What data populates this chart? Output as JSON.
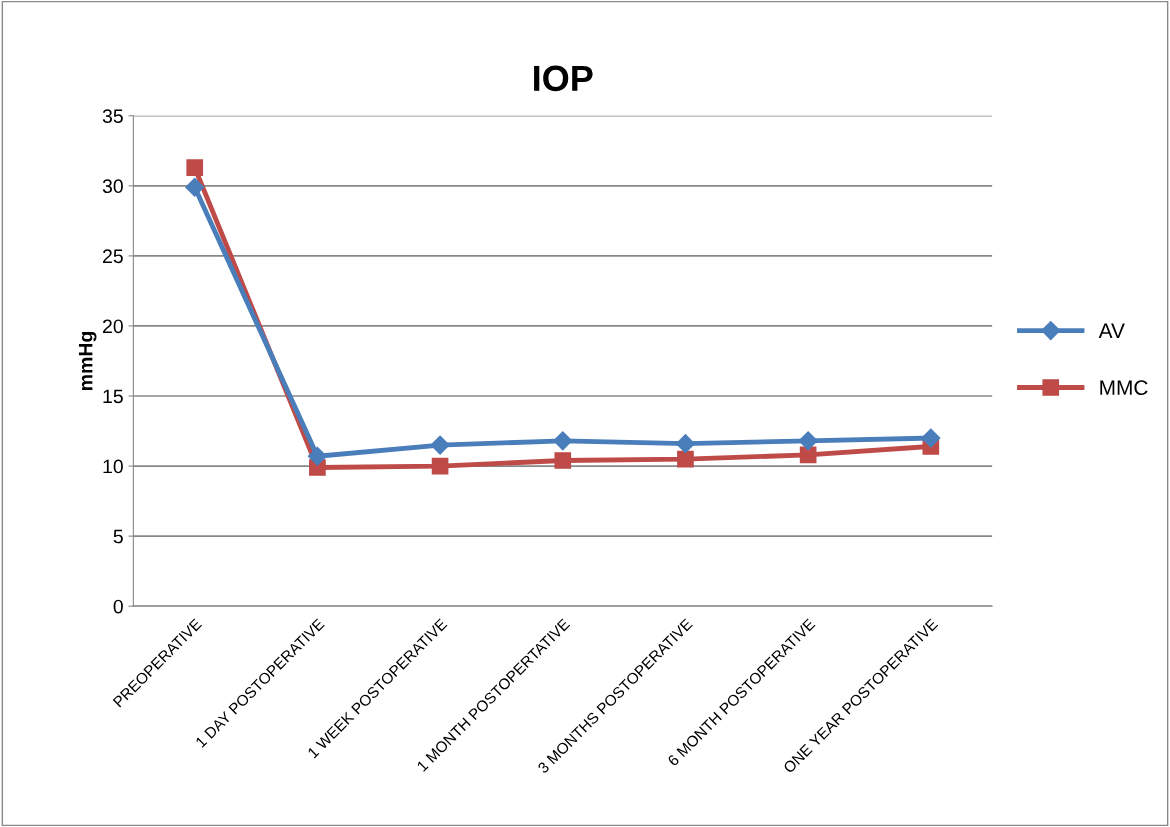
{
  "chart_data": {
    "type": "line",
    "title": "IOP",
    "ylabel": "mmHg",
    "categories": [
      "PREOPERATIVE",
      "1 DAY POSTOPERATIVE",
      "1 WEEK POSTOPERATIVE",
      "1 MONTH POSTOPERTATIVE",
      "3 MONTHS POSTOPERATIVE",
      "6 MONTH POSTOPERATIVE",
      "ONE YEAR POSTOPERATIVE"
    ],
    "series": [
      {
        "name": "AV",
        "color": "#4a7ebb",
        "marker": "diamond",
        "values": [
          29.9,
          10.7,
          11.5,
          11.8,
          11.6,
          11.8,
          12.0
        ]
      },
      {
        "name": "MMC",
        "color": "#be4b48",
        "marker": "square",
        "values": [
          31.3,
          9.9,
          10.0,
          10.4,
          10.5,
          10.8,
          11.4
        ]
      }
    ],
    "ylim": [
      0,
      35
    ],
    "yticks": [
      0,
      5,
      10,
      15,
      20,
      25,
      30,
      35
    ],
    "grid": "y",
    "legend": "right",
    "line_style": "solid"
  }
}
